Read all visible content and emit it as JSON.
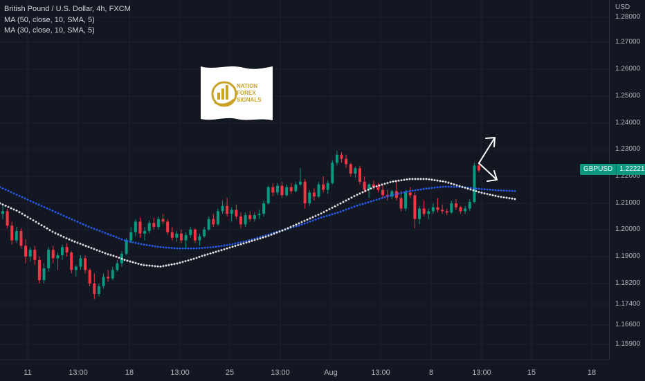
{
  "header": {
    "title": "British Pound / U.S. Dollar, 4h, FXCM",
    "ma1": "MA (50, close, 10, SMA, 5)",
    "ma2": "MA (30, close, 10, SMA, 5)"
  },
  "price_axis": {
    "currency": "USD"
  },
  "price_tag": {
    "symbol": "GBPUSD",
    "value": "1.22221"
  },
  "logo": {
    "line1": "NATION",
    "line2": "FOREX",
    "line3": "SIGNALS"
  },
  "colors": {
    "up": "#089981",
    "down": "#f23645",
    "ma50": "#2962ff",
    "ma30": "#ffffff",
    "bg": "#131722",
    "gold": "#c9a227"
  },
  "chart_data": {
    "type": "candlestick",
    "title": "British Pound / U.S. Dollar, 4h, FXCM",
    "ylim": [
      1.154,
      1.2845
    ],
    "yticks": [
      "1.28000",
      "1.27000",
      "1.26000",
      "1.25000",
      "1.24000",
      "1.23000",
      "1.22000",
      "1.21000",
      "1.20000",
      "1.19000",
      "1.18200",
      "1.17400",
      "1.16600",
      "1.15900"
    ],
    "xticks": [
      "11",
      "13:00",
      "18",
      "13:00",
      "25",
      "13:00",
      "Aug",
      "13:00",
      "8",
      "13:00",
      "15",
      "18"
    ],
    "candles": [
      [
        1.206,
        1.209,
        1.204,
        1.207
      ],
      [
        1.207,
        1.208,
        1.2005,
        1.2015
      ],
      [
        1.2015,
        1.203,
        1.1945,
        1.196
      ],
      [
        1.196,
        1.201,
        1.195,
        1.1995
      ],
      [
        1.1995,
        1.2005,
        1.193,
        1.194
      ],
      [
        1.194,
        1.1965,
        1.188,
        1.19
      ],
      [
        1.19,
        1.1935,
        1.1885,
        1.1925
      ],
      [
        1.1925,
        1.194,
        1.1875,
        1.189
      ],
      [
        1.189,
        1.19,
        1.182,
        1.183
      ],
      [
        1.183,
        1.188,
        1.182,
        1.1865
      ],
      [
        1.1865,
        1.1935,
        1.1855,
        1.1925
      ],
      [
        1.1925,
        1.194,
        1.188,
        1.1895
      ],
      [
        1.1895,
        1.1915,
        1.186,
        1.1905
      ],
      [
        1.1905,
        1.1945,
        1.189,
        1.1935
      ],
      [
        1.1935,
        1.195,
        1.19,
        1.1915
      ],
      [
        1.1915,
        1.192,
        1.185,
        1.186
      ],
      [
        1.186,
        1.1875,
        1.184,
        1.187
      ],
      [
        1.187,
        1.1905,
        1.186,
        1.1895
      ],
      [
        1.1895,
        1.1905,
        1.185,
        1.186
      ],
      [
        1.186,
        1.1865,
        1.181,
        1.182
      ],
      [
        1.182,
        1.185,
        1.176,
        1.178
      ],
      [
        1.178,
        1.182,
        1.177,
        1.181
      ],
      [
        1.181,
        1.185,
        1.18,
        1.184
      ],
      [
        1.184,
        1.186,
        1.1825,
        1.1835
      ],
      [
        1.1835,
        1.187,
        1.183,
        1.186
      ],
      [
        1.186,
        1.189,
        1.1855,
        1.188
      ],
      [
        1.188,
        1.192,
        1.187,
        1.191
      ],
      [
        1.191,
        1.197,
        1.1905,
        1.196
      ],
      [
        1.196,
        1.201,
        1.195,
        1.199
      ],
      [
        1.199,
        1.204,
        1.1975,
        1.203
      ],
      [
        1.203,
        1.2045,
        1.197,
        1.1985
      ],
      [
        1.1985,
        1.201,
        1.196,
        1.1995
      ],
      [
        1.1995,
        1.2035,
        1.1985,
        1.2025
      ],
      [
        1.2025,
        1.2045,
        1.2,
        1.201
      ],
      [
        1.201,
        1.205,
        1.2,
        1.204
      ],
      [
        1.204,
        1.206,
        1.202,
        1.203
      ],
      [
        1.203,
        1.204,
        1.198,
        1.199
      ],
      [
        1.199,
        1.201,
        1.196,
        1.197
      ],
      [
        1.197,
        1.1995,
        1.1955,
        1.1985
      ],
      [
        1.1985,
        1.2,
        1.195,
        1.196
      ],
      [
        1.196,
        1.199,
        1.193,
        1.198
      ],
      [
        1.198,
        1.201,
        1.197,
        1.2
      ],
      [
        1.2,
        1.2005,
        1.195,
        1.196
      ],
      [
        1.196,
        1.1985,
        1.194,
        1.1975
      ],
      [
        1.1975,
        1.201,
        1.197,
        1.2
      ],
      [
        1.2,
        1.205,
        1.1995,
        1.204
      ],
      [
        1.204,
        1.206,
        1.201,
        1.202
      ],
      [
        1.202,
        1.208,
        1.2015,
        1.207
      ],
      [
        1.207,
        1.211,
        1.206,
        1.209
      ],
      [
        1.209,
        1.212,
        1.205,
        1.206
      ],
      [
        1.206,
        1.2085,
        1.203,
        1.2075
      ],
      [
        1.2075,
        1.2095,
        1.204,
        1.205
      ],
      [
        1.205,
        1.2065,
        1.2005,
        1.202
      ],
      [
        1.202,
        1.2065,
        1.201,
        1.2055
      ],
      [
        1.2055,
        1.207,
        1.203,
        1.204
      ],
      [
        1.204,
        1.2065,
        1.203,
        1.2055
      ],
      [
        1.2055,
        1.2075,
        1.204,
        1.206
      ],
      [
        1.206,
        1.211,
        1.205,
        1.21
      ],
      [
        1.21,
        1.2165,
        1.2095,
        1.216
      ],
      [
        1.216,
        1.2175,
        1.2125,
        1.214
      ],
      [
        1.214,
        1.2175,
        1.213,
        1.2165
      ],
      [
        1.2165,
        1.218,
        1.212,
        1.213
      ],
      [
        1.213,
        1.217,
        1.2125,
        1.216
      ],
      [
        1.216,
        1.2175,
        1.2135,
        1.2145
      ],
      [
        1.2145,
        1.218,
        1.214,
        1.217
      ],
      [
        1.217,
        1.223,
        1.2165,
        1.218
      ],
      [
        1.218,
        1.219,
        1.208,
        1.21
      ],
      [
        1.21,
        1.215,
        1.209,
        1.214
      ],
      [
        1.214,
        1.2155,
        1.211,
        1.2125
      ],
      [
        1.2125,
        1.218,
        1.212,
        1.217
      ],
      [
        1.217,
        1.22,
        1.214,
        1.215
      ],
      [
        1.215,
        1.2185,
        1.2135,
        1.2175
      ],
      [
        1.2175,
        1.226,
        1.217,
        1.225
      ],
      [
        1.225,
        1.2295,
        1.224,
        1.228
      ],
      [
        1.228,
        1.229,
        1.225,
        1.2265
      ],
      [
        1.2265,
        1.228,
        1.223,
        1.2245
      ],
      [
        1.2245,
        1.225,
        1.22,
        1.221
      ],
      [
        1.221,
        1.2235,
        1.2195,
        1.223
      ],
      [
        1.223,
        1.224,
        1.217,
        1.218
      ],
      [
        1.218,
        1.22,
        1.214,
        1.215
      ],
      [
        1.215,
        1.2175,
        1.212,
        1.217
      ],
      [
        1.217,
        1.2185,
        1.215,
        1.216
      ],
      [
        1.216,
        1.2175,
        1.214,
        1.215
      ],
      [
        1.215,
        1.2165,
        1.212,
        1.213
      ],
      [
        1.213,
        1.215,
        1.211,
        1.2125
      ],
      [
        1.2125,
        1.215,
        1.2115,
        1.2145
      ],
      [
        1.2145,
        1.2185,
        1.211,
        1.212
      ],
      [
        1.212,
        1.2145,
        1.207,
        1.208
      ],
      [
        1.208,
        1.215,
        1.207,
        1.214
      ],
      [
        1.214,
        1.216,
        1.212,
        1.213
      ],
      [
        1.213,
        1.214,
        1.2005,
        1.204
      ],
      [
        1.204,
        1.209,
        1.202,
        1.208
      ],
      [
        1.208,
        1.211,
        1.205,
        1.206
      ],
      [
        1.206,
        1.208,
        1.204,
        1.207
      ],
      [
        1.207,
        1.21,
        1.206,
        1.2085
      ],
      [
        1.2085,
        1.212,
        1.2065,
        1.2075
      ],
      [
        1.2075,
        1.2095,
        1.206,
        1.207
      ],
      [
        1.207,
        1.208,
        1.2055,
        1.2065
      ],
      [
        1.2065,
        1.211,
        1.206,
        1.21
      ],
      [
        1.21,
        1.2115,
        1.2075,
        1.2085
      ],
      [
        1.2085,
        1.209,
        1.206,
        1.207
      ],
      [
        1.207,
        1.209,
        1.206,
        1.208
      ],
      [
        1.208,
        1.2115,
        1.207,
        1.2105
      ],
      [
        1.2105,
        1.225,
        1.21,
        1.224
      ],
      [
        1.224,
        1.2255,
        1.2215,
        1.2222
      ]
    ],
    "series": [
      {
        "values": [
          1.216,
          1.213,
          1.21,
          1.207,
          1.204,
          1.201,
          1.1985,
          1.196,
          1.1945,
          1.1935,
          1.193,
          1.193,
          1.1935,
          1.1945,
          1.196,
          1.198,
          1.2,
          1.202,
          1.2045,
          1.2065,
          1.209,
          1.211,
          1.213,
          1.2145,
          1.2155,
          1.2162,
          1.216,
          1.2153,
          1.2148,
          1.2145
        ]
      },
      {
        "values": [
          1.21,
          1.207,
          1.203,
          1.199,
          1.196,
          1.1935,
          1.191,
          1.189,
          1.1875,
          1.187,
          1.188,
          1.1895,
          1.1915,
          1.1935,
          1.1955,
          1.1975,
          1.2,
          1.203,
          1.206,
          1.2095,
          1.213,
          1.216,
          1.218,
          1.219,
          1.219,
          1.218,
          1.216,
          1.214,
          1.2125,
          1.2115
        ]
      }
    ]
  }
}
